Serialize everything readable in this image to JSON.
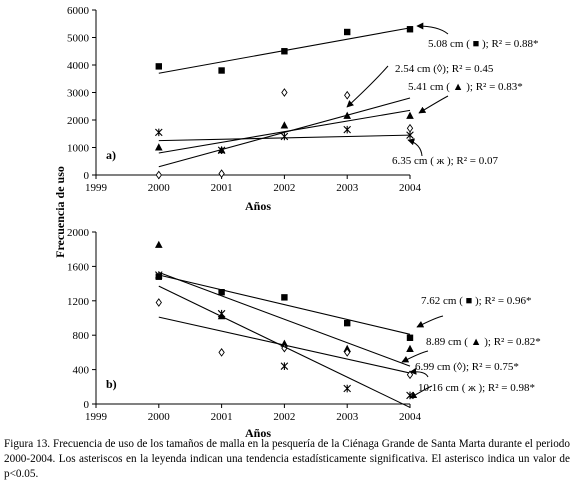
{
  "figure": {
    "ylabel": "Frecuencia de uso",
    "caption": "Figura 13. Frecuencia de uso de los tamaños de malla en la pesquería de la Ciénaga Grande de Santa Marta durante el periodo 2000-2004. Los asteriscos en la leyenda indican una tendencia estadísticamente significativa. El asterisco indica un valor de p<0.05."
  },
  "chart_data": [
    {
      "type": "scatter",
      "panel_label": "a)",
      "xlabel": "Años",
      "ylabel": "Frecuencia de uso",
      "xlim": [
        1999,
        2004
      ],
      "ylim": [
        0,
        6000
      ],
      "xticks": [
        "1999",
        "2000",
        "2001",
        "2002",
        "2003",
        "2004"
      ],
      "yticks": [
        "0",
        "1000",
        "2000",
        "3000",
        "4000",
        "5000",
        "6000"
      ],
      "trendlines": true,
      "series": [
        {
          "marker": "square",
          "x": [
            2000,
            2001,
            2002,
            2003,
            2004
          ],
          "y": [
            3950,
            3800,
            4500,
            5200,
            5300
          ],
          "trend": [
            [
              2000,
              3700
            ],
            [
              2004,
              5350
            ]
          ],
          "annotation": "5.08 cm ( ■ ); R² = 0.88*"
        },
        {
          "marker": "diamond",
          "x": [
            2000,
            2001,
            2002,
            2003,
            2004
          ],
          "y": [
            0,
            50,
            3000,
            2900,
            1700
          ],
          "trend": [
            [
              2000,
              300
            ],
            [
              2004,
              2800
            ]
          ],
          "annotation": "2.54 cm (◊); R² = 0.45"
        },
        {
          "marker": "triangle",
          "x": [
            2000,
            2001,
            2002,
            2003,
            2004
          ],
          "y": [
            1000,
            900,
            1800,
            2150,
            2150
          ],
          "trend": [
            [
              2000,
              800
            ],
            [
              2004,
              2350
            ]
          ],
          "annotation": "5.41 cm ( ▲ ); R² = 0.83*"
        },
        {
          "marker": "asterisk",
          "x": [
            2000,
            2001,
            2002,
            2003,
            2004
          ],
          "y": [
            1550,
            900,
            1400,
            1650,
            1450
          ],
          "trend": [
            [
              2000,
              1250
            ],
            [
              2004,
              1450
            ]
          ],
          "annotation": "6.35 cm ( ж ); R² = 0.07"
        }
      ]
    },
    {
      "type": "scatter",
      "panel_label": "b)",
      "xlabel": "Años",
      "ylabel": "Frecuencia de uso",
      "xlim": [
        1999,
        2004
      ],
      "ylim": [
        0,
        2000
      ],
      "xticks": [
        "1999",
        "2000",
        "2001",
        "2002",
        "2003",
        "2004"
      ],
      "yticks": [
        "0",
        "400",
        "800",
        "1200",
        "1600",
        "2000"
      ],
      "trendlines": true,
      "series": [
        {
          "marker": "square",
          "x": [
            2000,
            2001,
            2002,
            2003,
            2004
          ],
          "y": [
            1480,
            1300,
            1240,
            940,
            770
          ],
          "trend": [
            [
              2000,
              1500
            ],
            [
              2004,
              810
            ]
          ],
          "annotation": "7.62 cm ( ■ ); R² = 0.96*"
        },
        {
          "marker": "triangle",
          "x": [
            2000,
            2001,
            2002,
            2003,
            2004
          ],
          "y": [
            1850,
            1020,
            700,
            640,
            640
          ],
          "trend": [
            [
              2000,
              1530
            ],
            [
              2004,
              440
            ]
          ],
          "annotation": "8.89 cm ( ▲ ); R² = 0.82*"
        },
        {
          "marker": "diamond",
          "x": [
            2000,
            2001,
            2002,
            2003,
            2004
          ],
          "y": [
            1180,
            600,
            650,
            600,
            340
          ],
          "trend": [
            [
              2000,
              1010
            ],
            [
              2004,
              360
            ]
          ],
          "annotation": "6.99 cm (◊); R² = 0.75*"
        },
        {
          "marker": "asterisk",
          "x": [
            2000,
            2001,
            2002,
            2003,
            2004
          ],
          "y": [
            1500,
            1050,
            440,
            180,
            100
          ],
          "trend": [
            [
              2000,
              1370
            ],
            [
              2004,
              -40
            ]
          ],
          "annotation": "10.16 cm ( ж ); R² = 0.98*"
        }
      ]
    }
  ]
}
